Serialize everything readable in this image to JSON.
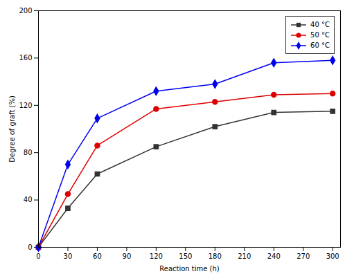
{
  "chart_data": {
    "type": "line",
    "xlabel": "Reaction time (h)",
    "ylabel": "Degree of graft (%)",
    "x": [
      0,
      30,
      60,
      120,
      180,
      240,
      300
    ],
    "series": [
      {
        "name": "40 °C",
        "color": "#333333",
        "marker": "square",
        "values": [
          0,
          33,
          62,
          85,
          102,
          114,
          115
        ]
      },
      {
        "name": "50 °C",
        "color": "#dd0000",
        "marker": "circle",
        "values": [
          0,
          45,
          86,
          117,
          123,
          129,
          130
        ]
      },
      {
        "name": "60 °C",
        "color": "#0000ee",
        "marker": "diamond",
        "values": [
          0,
          70,
          109,
          132,
          138,
          156,
          158
        ]
      }
    ],
    "xlim": [
      0,
      308
    ],
    "ylim": [
      0,
      200
    ],
    "xticks": [
      0,
      30,
      60,
      90,
      120,
      150,
      180,
      210,
      240,
      270,
      300
    ],
    "yticks": [
      0,
      40,
      80,
      120,
      160,
      200
    ],
    "grid": false,
    "legend": "upper right"
  }
}
